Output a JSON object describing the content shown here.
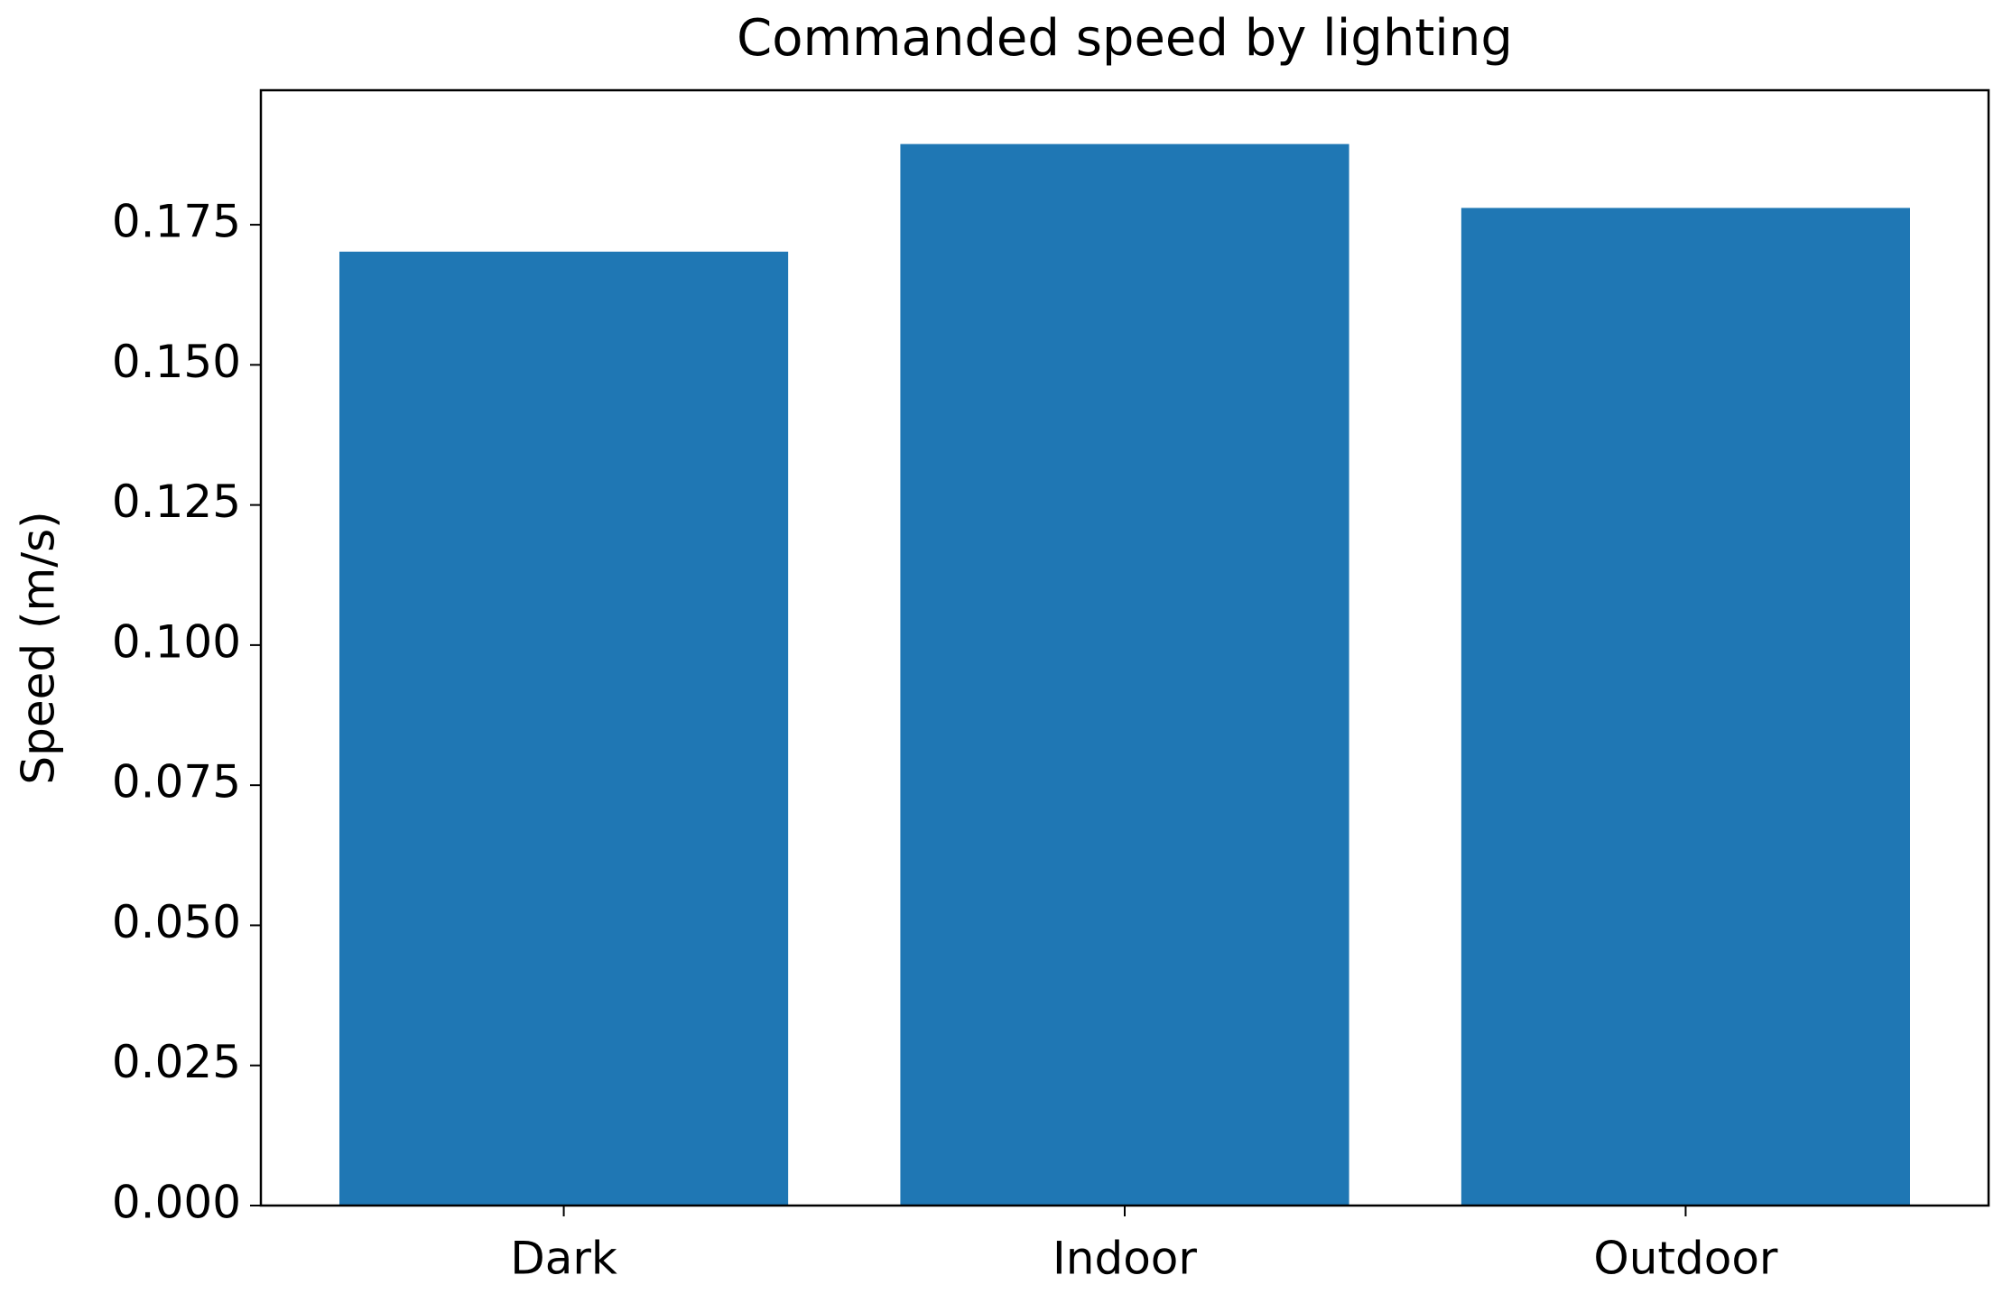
{
  "chart_data": {
    "type": "bar",
    "title": "Commanded speed by lighting",
    "y_label": "Speed (m/s)",
    "categories": [
      "Dark",
      "Indoor",
      "Outdoor"
    ],
    "values": [
      0.1702,
      0.1894,
      0.178
    ],
    "color": "#1f77b4",
    "ylim": [
      0,
      0.199
    ],
    "yticks": [
      {
        "value": 0,
        "label": "0.000"
      },
      0.025,
      {
        "value": 0.05,
        "label": "0.050"
      },
      0.075,
      {
        "value": 0.1,
        "label": "0.100"
      },
      0.125,
      {
        "value": 0.15,
        "label": "0.150"
      },
      0.175
    ],
    "grid": false
  }
}
